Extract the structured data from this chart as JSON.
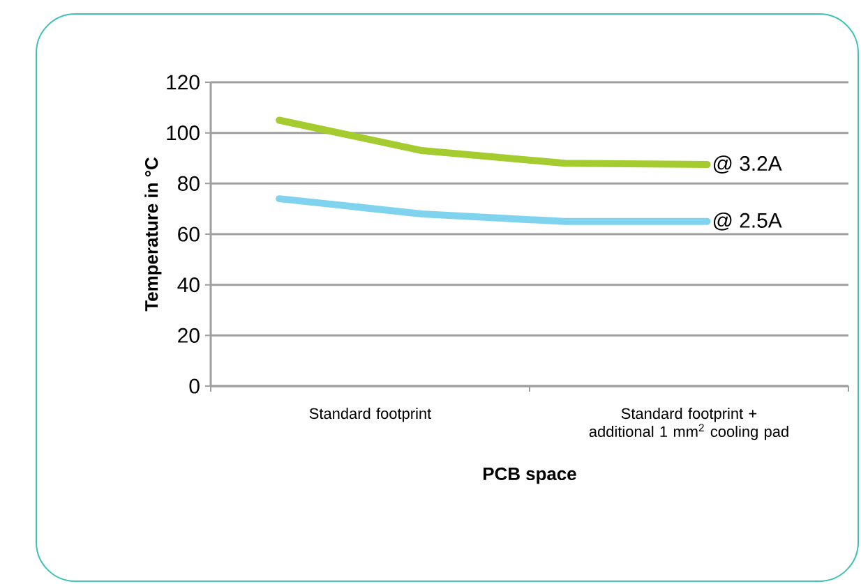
{
  "chart_data": {
    "type": "line",
    "xlabel": "PCB space",
    "ylabel": "Temperature in °C",
    "categories": [
      null,
      null,
      null,
      null
    ],
    "annotations": [
      "Standard footprint",
      "Standard footprint + additional 1 mm$^{2}$ cooling pad"
    ],
    "series": [
      {
        "name": "@ 3.2A",
        "color": "#a5cc2e",
        "values": [
          105,
          93,
          88,
          87.5
        ]
      },
      {
        "name": "@ 2.5A",
        "color": "#80d3ef",
        "values": [
          74,
          68,
          65,
          65
        ]
      }
    ],
    "ylim": [
      0,
      120
    ],
    "yticks": [
      0,
      20,
      40,
      60,
      80,
      100,
      120
    ],
    "grid": "y"
  }
}
